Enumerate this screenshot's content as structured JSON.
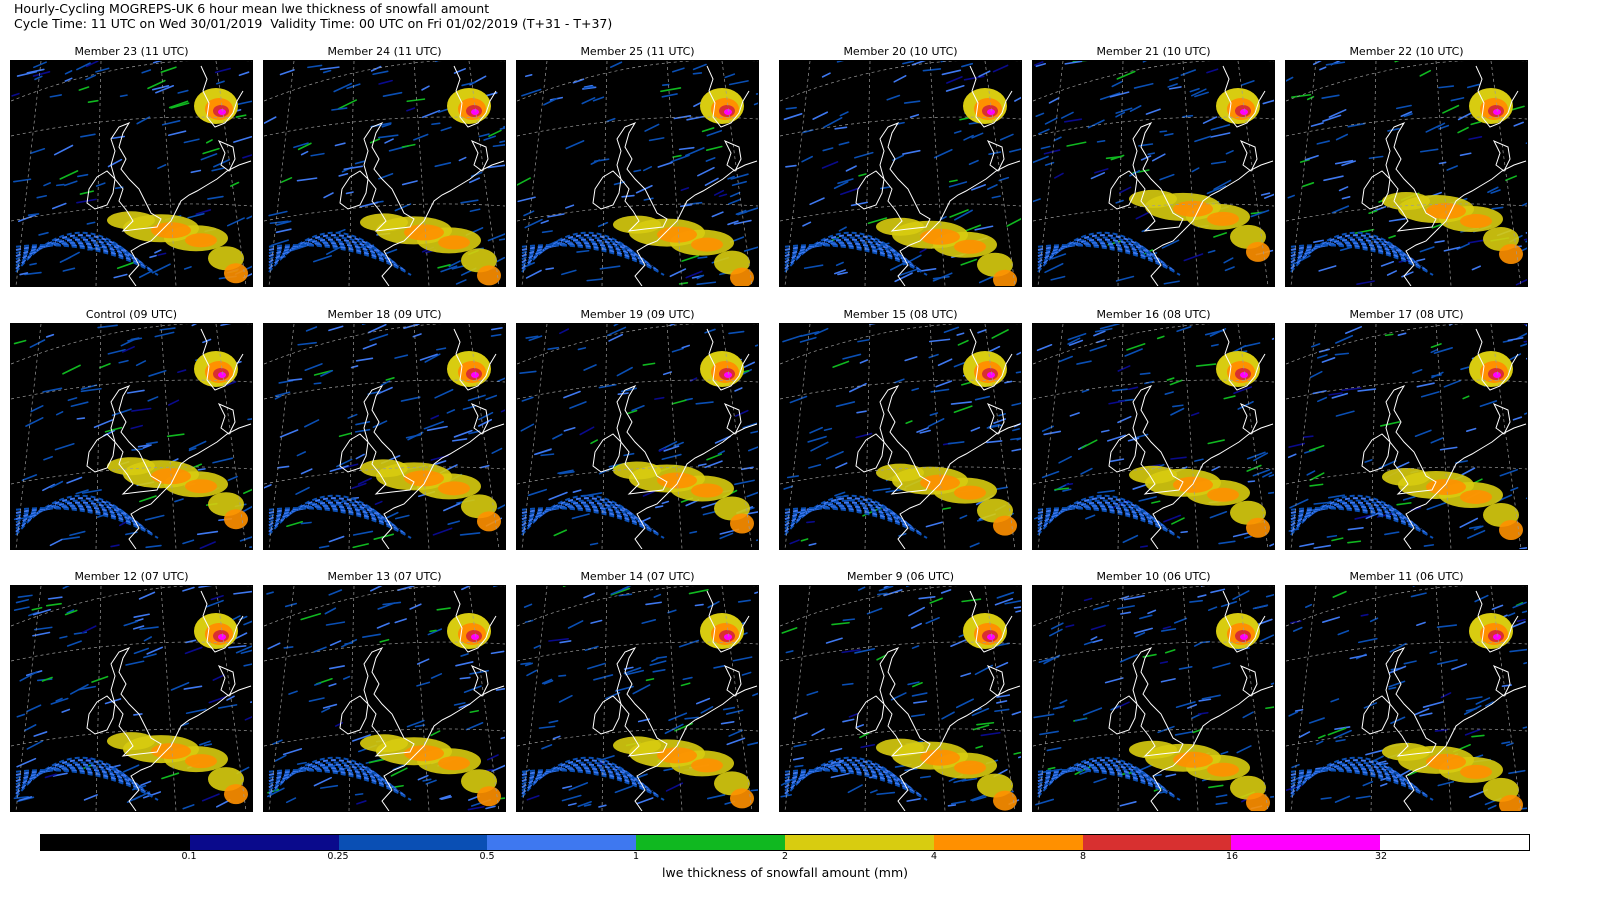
{
  "header": {
    "title_line1": "Hourly-Cycling MOGREPS-UK 6 hour mean lwe thickness of snowfall amount",
    "title_line2": "Cycle Time: 11 UTC on Wed 30/01/2019  Validity Time: 00 UTC on Fri 01/02/2019 (T+31 - T+37)"
  },
  "panels": [
    {
      "title": "Member 23 (11 UTC)"
    },
    {
      "title": "Member 24 (11 UTC)"
    },
    {
      "title": "Member 25 (11 UTC)"
    },
    {
      "title": "Member 20 (10 UTC)"
    },
    {
      "title": "Member 21 (10 UTC)"
    },
    {
      "title": "Member 22 (10 UTC)"
    },
    {
      "title": "Control (09 UTC)"
    },
    {
      "title": "Member 18 (09 UTC)"
    },
    {
      "title": "Member 19 (09 UTC)"
    },
    {
      "title": "Member 15 (08 UTC)"
    },
    {
      "title": "Member 16 (08 UTC)"
    },
    {
      "title": "Member 17 (08 UTC)"
    },
    {
      "title": "Member 12 (07 UTC)"
    },
    {
      "title": "Member 13 (07 UTC)"
    },
    {
      "title": "Member 14 (07 UTC)"
    },
    {
      "title": "Member 9 (06 UTC)"
    },
    {
      "title": "Member 10 (06 UTC)"
    },
    {
      "title": "Member 11 (06 UTC)"
    }
  ],
  "colorbar": {
    "label": "lwe thickness of snowfall amount (mm)",
    "colors": [
      "#000000",
      "#0a0a8c",
      "#0a4fb4",
      "#3e78f0",
      "#10b820",
      "#d8cc10",
      "#ff9000",
      "#d83030",
      "#ff00ff",
      "#ffffff"
    ],
    "ticks": [
      "0.1",
      "0.25",
      "0.5",
      "1",
      "2",
      "4",
      "8",
      "16",
      "32"
    ]
  },
  "colors": {
    "map_background": "#000000",
    "coastline": "#ffffff",
    "gridline": "#9a9a9a"
  }
}
